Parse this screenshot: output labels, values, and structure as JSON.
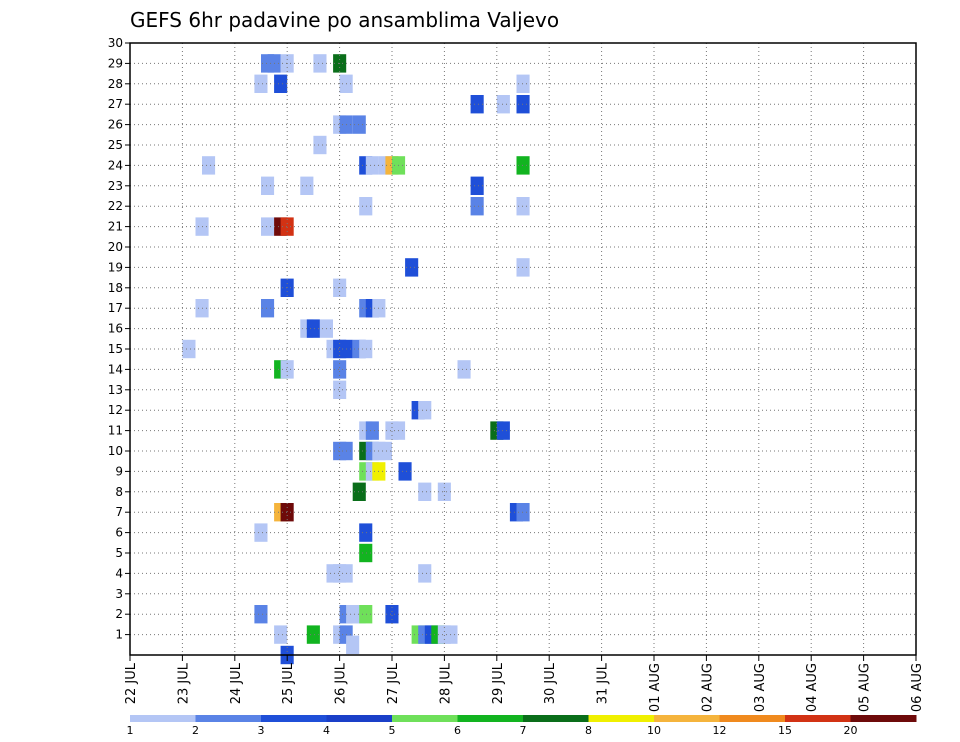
{
  "chart_data": {
    "type": "heatmap",
    "title": "GEFS 6hr padavine po ansamblima Valjevo",
    "x_tick_labels": [
      "22 JUL",
      "23 JUL",
      "24 JUL",
      "25 JUL",
      "26 JUL",
      "27 JUL",
      "28 JUL",
      "29 JUL",
      "30 JUL",
      "31 JUL",
      "01 AUG",
      "02 AUG",
      "03 AUG",
      "04 AUG",
      "05 AUG",
      "06 AUG"
    ],
    "x_unit": "6-hour step",
    "y_tick_labels": [
      "1",
      "2",
      "3",
      "4",
      "5",
      "6",
      "7",
      "8",
      "9",
      "10",
      "11",
      "12",
      "13",
      "14",
      "15",
      "16",
      "17",
      "18",
      "19",
      "20",
      "21",
      "22",
      "23",
      "24",
      "25",
      "26",
      "27",
      "28",
      "29",
      "30"
    ],
    "ylim": [
      0,
      30
    ],
    "grid": true,
    "colorbar": {
      "labels": [
        "1",
        "2",
        "3",
        "4",
        "5",
        "6",
        "7",
        "8",
        "10",
        "12",
        "15",
        "20"
      ],
      "colors": [
        "#b4c6f5",
        "#5a83e6",
        "#1f4fd8",
        "#1a3fc8",
        "#6fe05a",
        "#12b420",
        "#0a6e1a",
        "#f0f000",
        "#f5b43c",
        "#f08a1e",
        "#d23214",
        "#6e0a0a"
      ]
    },
    "cells": [
      {
        "x": 10.5,
        "y": 29,
        "c": 2
      },
      {
        "x": 11,
        "y": 29,
        "c": 2
      },
      {
        "x": 12,
        "y": 29,
        "c": 1
      },
      {
        "x": 14.5,
        "y": 29,
        "c": 1
      },
      {
        "x": 16,
        "y": 29,
        "c": 7
      },
      {
        "x": 10,
        "y": 28,
        "c": 1
      },
      {
        "x": 11.5,
        "y": 28,
        "c": 3
      },
      {
        "x": 16.5,
        "y": 28,
        "c": 1
      },
      {
        "x": 30,
        "y": 28,
        "c": 1
      },
      {
        "x": 26.5,
        "y": 27,
        "c": 3
      },
      {
        "x": 28.5,
        "y": 27,
        "c": 1
      },
      {
        "x": 30,
        "y": 27,
        "c": 3
      },
      {
        "x": 16,
        "y": 26,
        "c": 1
      },
      {
        "x": 16.5,
        "y": 26,
        "c": 2
      },
      {
        "x": 17.5,
        "y": 26,
        "c": 2
      },
      {
        "x": 14.5,
        "y": 25,
        "c": 1
      },
      {
        "x": 6,
        "y": 24,
        "c": 1
      },
      {
        "x": 18,
        "y": 24,
        "c": 3
      },
      {
        "x": 18.5,
        "y": 24,
        "c": 1
      },
      {
        "x": 19.5,
        "y": 24,
        "c": 1
      },
      {
        "x": 20,
        "y": 24,
        "c": 9
      },
      {
        "x": 20.5,
        "y": 24,
        "c": 5
      },
      {
        "x": 30,
        "y": 24,
        "c": 6
      },
      {
        "x": 10.5,
        "y": 23,
        "c": 1
      },
      {
        "x": 13.5,
        "y": 23,
        "c": 1
      },
      {
        "x": 26.5,
        "y": 23,
        "c": 3
      },
      {
        "x": 18,
        "y": 22,
        "c": 1
      },
      {
        "x": 26.5,
        "y": 22,
        "c": 2
      },
      {
        "x": 30,
        "y": 22,
        "c": 1
      },
      {
        "x": 5.5,
        "y": 21,
        "c": 1
      },
      {
        "x": 10.5,
        "y": 21,
        "c": 1
      },
      {
        "x": 11.5,
        "y": 21,
        "c": 12
      },
      {
        "x": 12,
        "y": 21,
        "c": 11
      },
      {
        "x": 21.5,
        "y": 19,
        "c": 3
      },
      {
        "x": 30,
        "y": 19,
        "c": 1
      },
      {
        "x": 12,
        "y": 18,
        "c": 3
      },
      {
        "x": 16,
        "y": 18,
        "c": 1
      },
      {
        "x": 5.5,
        "y": 17,
        "c": 1
      },
      {
        "x": 10.5,
        "y": 17,
        "c": 2
      },
      {
        "x": 18,
        "y": 17,
        "c": 2
      },
      {
        "x": 18.5,
        "y": 17,
        "c": 3
      },
      {
        "x": 19,
        "y": 17,
        "c": 1
      },
      {
        "x": 13.5,
        "y": 16,
        "c": 1
      },
      {
        "x": 14,
        "y": 16,
        "c": 3
      },
      {
        "x": 15,
        "y": 16,
        "c": 1
      },
      {
        "x": 4.5,
        "y": 15,
        "c": 1
      },
      {
        "x": 15.5,
        "y": 15,
        "c": 1
      },
      {
        "x": 16,
        "y": 15,
        "c": 3
      },
      {
        "x": 16.5,
        "y": 15,
        "c": 3
      },
      {
        "x": 17.5,
        "y": 15,
        "c": 2
      },
      {
        "x": 18,
        "y": 15,
        "c": 1
      },
      {
        "x": 11.5,
        "y": 14,
        "c": 6
      },
      {
        "x": 12,
        "y": 14,
        "c": 1
      },
      {
        "x": 16,
        "y": 14,
        "c": 2
      },
      {
        "x": 25.5,
        "y": 14,
        "c": 1
      },
      {
        "x": 16,
        "y": 13,
        "c": 1
      },
      {
        "x": 22,
        "y": 12,
        "c": 3
      },
      {
        "x": 22.5,
        "y": 12,
        "c": 1
      },
      {
        "x": 18,
        "y": 11,
        "c": 1
      },
      {
        "x": 18.5,
        "y": 11,
        "c": 2
      },
      {
        "x": 20,
        "y": 11,
        "c": 1
      },
      {
        "x": 20.5,
        "y": 11,
        "c": 1
      },
      {
        "x": 28,
        "y": 11,
        "c": 7
      },
      {
        "x": 28.5,
        "y": 11,
        "c": 3
      },
      {
        "x": 16,
        "y": 10,
        "c": 2
      },
      {
        "x": 16.5,
        "y": 10,
        "c": 2
      },
      {
        "x": 18,
        "y": 10,
        "c": 7
      },
      {
        "x": 18.5,
        "y": 10,
        "c": 2
      },
      {
        "x": 19,
        "y": 10,
        "c": 1
      },
      {
        "x": 19.5,
        "y": 10,
        "c": 1
      },
      {
        "x": 18,
        "y": 9,
        "c": 5
      },
      {
        "x": 18.5,
        "y": 9,
        "c": 1
      },
      {
        "x": 19,
        "y": 9,
        "c": 8
      },
      {
        "x": 21,
        "y": 9,
        "c": 3
      },
      {
        "x": 17.5,
        "y": 8,
        "c": 7
      },
      {
        "x": 22.5,
        "y": 8,
        "c": 1
      },
      {
        "x": 24,
        "y": 8,
        "c": 1
      },
      {
        "x": 11.5,
        "y": 7,
        "c": 9
      },
      {
        "x": 12,
        "y": 7,
        "c": 12
      },
      {
        "x": 29.5,
        "y": 7,
        "c": 3
      },
      {
        "x": 30,
        "y": 7,
        "c": 2
      },
      {
        "x": 10,
        "y": 6,
        "c": 1
      },
      {
        "x": 18,
        "y": 6,
        "c": 3
      },
      {
        "x": 18,
        "y": 5,
        "c": 6
      },
      {
        "x": 15.5,
        "y": 4,
        "c": 1
      },
      {
        "x": 16,
        "y": 4,
        "c": 1
      },
      {
        "x": 16.5,
        "y": 4,
        "c": 1
      },
      {
        "x": 22.5,
        "y": 4,
        "c": 1
      },
      {
        "x": 10,
        "y": 2,
        "c": 2
      },
      {
        "x": 16.5,
        "y": 2,
        "c": 2
      },
      {
        "x": 17,
        "y": 2,
        "c": 1
      },
      {
        "x": 17.5,
        "y": 2,
        "c": 1
      },
      {
        "x": 18,
        "y": 2,
        "c": 5
      },
      {
        "x": 20,
        "y": 2,
        "c": 3
      },
      {
        "x": 11.5,
        "y": 1,
        "c": 1
      },
      {
        "x": 14,
        "y": 1,
        "c": 6
      },
      {
        "x": 16,
        "y": 1,
        "c": 1
      },
      {
        "x": 16.5,
        "y": 1,
        "c": 2
      },
      {
        "x": 22,
        "y": 1,
        "c": 5
      },
      {
        "x": 22.5,
        "y": 1,
        "c": 2
      },
      {
        "x": 23,
        "y": 1,
        "c": 3
      },
      {
        "x": 23.5,
        "y": 1,
        "c": 6
      },
      {
        "x": 24,
        "y": 1,
        "c": 1
      },
      {
        "x": 24.5,
        "y": 1,
        "c": 1
      },
      {
        "x": 17,
        "y": 0.5,
        "c": 1
      },
      {
        "x": 12,
        "y": 0,
        "c": 3
      }
    ]
  }
}
